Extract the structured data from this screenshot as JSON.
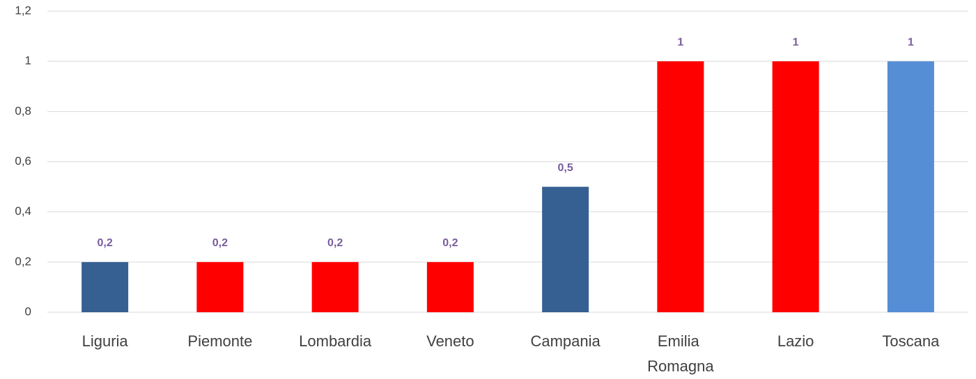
{
  "chart_data": {
    "type": "bar",
    "categories": [
      "Liguria",
      "Piemonte",
      "Lombardia",
      "Veneto",
      "Campania",
      "Emilia Romagna",
      "Lazio",
      "Toscana"
    ],
    "values": [
      0.2,
      0.2,
      0.2,
      0.2,
      0.5,
      1,
      1,
      1
    ],
    "value_labels": [
      "0,2",
      "0,2",
      "0,2",
      "0,2",
      "0,5",
      "1",
      "1",
      "1"
    ],
    "colors": [
      "#376092",
      "#ff0000",
      "#ff0000",
      "#ff0000",
      "#376092",
      "#ff0000",
      "#ff0000",
      "#558ed5"
    ],
    "ylim": [
      0,
      1.2
    ],
    "yticks": [
      0,
      {
        "value": 0.2,
        "label": "0,2"
      },
      {
        "value": 0.4,
        "label": "0,4"
      },
      {
        "value": 0.6,
        "label": "0,6"
      },
      {
        "value": 0.8,
        "label": "0,8"
      },
      1,
      {
        "value": 1.2,
        "label": "1,2"
      }
    ],
    "grid": true
  }
}
